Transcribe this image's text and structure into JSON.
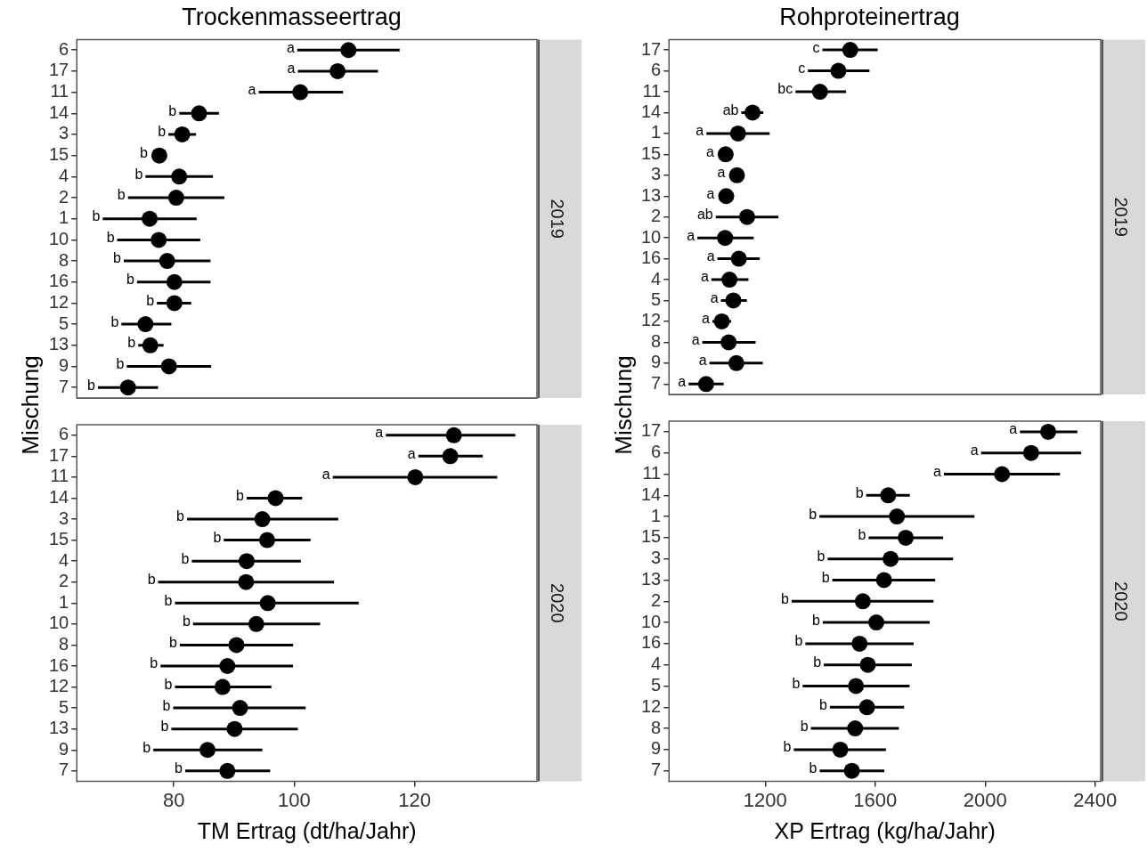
{
  "chart_data": [
    {
      "type": "scatter",
      "orientation": "horizontal",
      "title": "Trockenmasseertrag",
      "ylabel": "Mischung",
      "y2label": "2019",
      "categories": [
        "6",
        "17",
        "11",
        "14",
        "3",
        "15",
        "4",
        "2",
        "1",
        "10",
        "8",
        "16",
        "12",
        "5",
        "13",
        "9",
        "7"
      ],
      "color": "#000000",
      "marker": "circle",
      "grid": false,
      "legend": false,
      "tick_labels": "y",
      "xlim": [
        63.9,
        140.3
      ],
      "xticks": [
        80,
        100,
        120
      ],
      "values": [
        109.0,
        107.2,
        101.0,
        84.2,
        81.4,
        77.6,
        80.9,
        80.4,
        76.0,
        77.5,
        78.9,
        80.1,
        80.1,
        75.3,
        76.1,
        79.2,
        72.4
      ],
      "errors": [
        [
          100.5,
          117.5
        ],
        [
          100.6,
          113.9
        ],
        [
          94.1,
          108.1
        ],
        [
          80.9,
          87.5
        ],
        [
          79.1,
          83.7
        ],
        null,
        [
          75.3,
          86.5
        ],
        [
          72.4,
          88.4
        ],
        [
          68.2,
          83.8
        ],
        [
          70.6,
          84.4
        ],
        [
          71.7,
          86.1
        ],
        [
          73.9,
          86.1
        ],
        [
          77.2,
          82.9
        ],
        [
          71.3,
          79.6
        ],
        [
          74.1,
          78.3
        ],
        [
          72.2,
          86.2
        ],
        [
          67.4,
          77.4
        ]
      ],
      "annotations": [
        {
          "text": "a",
          "x": 100.5,
          "y": "6"
        },
        {
          "text": "a",
          "x": 100.6,
          "y": "17"
        },
        {
          "text": "a",
          "x": 94.1,
          "y": "11"
        },
        {
          "text": "b",
          "x": 80.9,
          "y": "14"
        },
        {
          "text": "b",
          "x": 79.1,
          "y": "3"
        },
        {
          "text": "b",
          "x": 77.6,
          "y": "15"
        },
        {
          "text": "b",
          "x": 75.3,
          "y": "4"
        },
        {
          "text": "b",
          "x": 72.4,
          "y": "2"
        },
        {
          "text": "b",
          "x": 68.2,
          "y": "1"
        },
        {
          "text": "b",
          "x": 70.6,
          "y": "10"
        },
        {
          "text": "b",
          "x": 71.7,
          "y": "8"
        },
        {
          "text": "b",
          "x": 73.9,
          "y": "16"
        },
        {
          "text": "b",
          "x": 77.2,
          "y": "12"
        },
        {
          "text": "b",
          "x": 71.3,
          "y": "5"
        },
        {
          "text": "b",
          "x": 74.1,
          "y": "13"
        },
        {
          "text": "b",
          "x": 72.2,
          "y": "9"
        },
        {
          "text": "b",
          "x": 67.4,
          "y": "7"
        }
      ]
    },
    {
      "type": "scatter",
      "orientation": "horizontal",
      "xlabel": "TM Ertrag (dt/ha/Jahr)",
      "y2label": "2020",
      "categories": [
        "6",
        "17",
        "11",
        "14",
        "3",
        "15",
        "4",
        "2",
        "1",
        "10",
        "8",
        "16",
        "12",
        "5",
        "13",
        "9",
        "7"
      ],
      "color": "#000000",
      "marker": "circle",
      "grid": false,
      "legend": false,
      "xlim": [
        63.9,
        140.3
      ],
      "xticks": [
        80,
        100,
        120
      ],
      "values": [
        126.5,
        125.9,
        120.1,
        96.9,
        94.7,
        95.5,
        92.1,
        92.0,
        95.6,
        93.7,
        90.4,
        88.9,
        88.1,
        91.0,
        90.1,
        85.6,
        88.9
      ],
      "errors": [
        [
          115.2,
          136.7
        ],
        [
          120.6,
          131.3
        ],
        [
          106.4,
          133.7
        ],
        [
          92.1,
          101.3
        ],
        [
          82.2,
          107.3
        ],
        [
          88.3,
          102.7
        ],
        [
          83.0,
          101.1
        ],
        [
          77.4,
          106.6
        ],
        [
          80.2,
          110.7
        ],
        [
          83.2,
          104.3
        ],
        [
          81.0,
          99.8
        ],
        [
          77.8,
          99.8
        ],
        [
          80.2,
          96.2
        ],
        [
          79.9,
          101.9
        ],
        [
          79.6,
          100.6
        ],
        [
          76.6,
          94.7
        ],
        [
          81.9,
          96.0
        ]
      ],
      "annotations": [
        {
          "text": "a",
          "x": 115.2,
          "y": "6"
        },
        {
          "text": "a",
          "x": 120.6,
          "y": "17"
        },
        {
          "text": "a",
          "x": 106.4,
          "y": "11"
        },
        {
          "text": "b",
          "x": 92.1,
          "y": "14"
        },
        {
          "text": "b",
          "x": 82.2,
          "y": "3"
        },
        {
          "text": "b",
          "x": 88.3,
          "y": "15"
        },
        {
          "text": "b",
          "x": 83.0,
          "y": "4"
        },
        {
          "text": "b",
          "x": 77.4,
          "y": "2"
        },
        {
          "text": "b",
          "x": 80.2,
          "y": "1"
        },
        {
          "text": "b",
          "x": 83.2,
          "y": "10"
        },
        {
          "text": "b",
          "x": 81.0,
          "y": "8"
        },
        {
          "text": "b",
          "x": 77.8,
          "y": "16"
        },
        {
          "text": "b",
          "x": 80.2,
          "y": "12"
        },
        {
          "text": "b",
          "x": 79.9,
          "y": "5"
        },
        {
          "text": "b",
          "x": 79.6,
          "y": "13"
        },
        {
          "text": "b",
          "x": 76.6,
          "y": "9"
        },
        {
          "text": "b",
          "x": 81.9,
          "y": "7"
        }
      ]
    },
    {
      "type": "scatter",
      "orientation": "horizontal",
      "title": "Rohproteinertrag",
      "ylabel": "Mischung",
      "y2label": "2019",
      "categories": [
        "17",
        "6",
        "11",
        "14",
        "1",
        "15",
        "3",
        "13",
        "2",
        "10",
        "16",
        "4",
        "5",
        "12",
        "8",
        "9",
        "7"
      ],
      "color": "#000000",
      "marker": "circle",
      "grid": false,
      "legend": false,
      "tick_labels": "y",
      "xlim": [
        850,
        2420
      ],
      "xticks": [
        1200,
        1600,
        2000,
        2400
      ],
      "values": [
        1509,
        1466,
        1399,
        1154,
        1101,
        1056,
        1097,
        1058,
        1134,
        1054,
        1104,
        1070,
        1084,
        1042,
        1067,
        1095,
        985
      ],
      "errors": [
        [
          1408,
          1609
        ],
        [
          1355,
          1579
        ],
        [
          1310,
          1494
        ],
        [
          1113,
          1193
        ],
        [
          986,
          1216
        ],
        null,
        null,
        null,
        [
          1020,
          1248
        ],
        [
          953,
          1158
        ],
        [
          1026,
          1180
        ],
        [
          1004,
          1139
        ],
        [
          1039,
          1133
        ],
        [
          1008,
          1076
        ],
        [
          971,
          1165
        ],
        [
          997,
          1191
        ],
        [
          921,
          1049
        ]
      ],
      "annotations": [
        {
          "text": "c",
          "x": 1408,
          "y": "17"
        },
        {
          "text": "c",
          "x": 1355,
          "y": "6"
        },
        {
          "text": "bc",
          "x": 1310,
          "y": "11"
        },
        {
          "text": "ab",
          "x": 1113,
          "y": "14"
        },
        {
          "text": "a",
          "x": 986,
          "y": "1"
        },
        {
          "text": "a",
          "x": 1056,
          "y": "15"
        },
        {
          "text": "a",
          "x": 1097,
          "y": "3"
        },
        {
          "text": "a",
          "x": 1058,
          "y": "13"
        },
        {
          "text": "ab",
          "x": 1020,
          "y": "2"
        },
        {
          "text": "a",
          "x": 953,
          "y": "10"
        },
        {
          "text": "a",
          "x": 1026,
          "y": "16"
        },
        {
          "text": "a",
          "x": 1004,
          "y": "4"
        },
        {
          "text": "a",
          "x": 1039,
          "y": "5"
        },
        {
          "text": "a",
          "x": 1008,
          "y": "12"
        },
        {
          "text": "a",
          "x": 971,
          "y": "8"
        },
        {
          "text": "a",
          "x": 997,
          "y": "9"
        },
        {
          "text": "a",
          "x": 921,
          "y": "7"
        }
      ]
    },
    {
      "type": "scatter",
      "orientation": "horizontal",
      "xlabel": "XP Ertrag (kg/ha/Jahr)",
      "y2label": "2020",
      "categories": [
        "17",
        "6",
        "11",
        "14",
        "1",
        "15",
        "3",
        "13",
        "2",
        "10",
        "16",
        "4",
        "5",
        "12",
        "8",
        "9",
        "7"
      ],
      "color": "#000000",
      "marker": "circle",
      "grid": false,
      "legend": false,
      "xlim": [
        850,
        2420
      ],
      "xticks": [
        1200,
        1600,
        2000,
        2400
      ],
      "values": [
        2229,
        2167,
        2061,
        1647,
        1679,
        1711,
        1656,
        1632,
        1555,
        1604,
        1543,
        1573,
        1530,
        1570,
        1527,
        1473,
        1515
      ],
      "errors": [
        [
          2126,
          2335
        ],
        [
          1985,
          2349
        ],
        [
          1850,
          2272
        ],
        [
          1567,
          1726
        ],
        [
          1397,
          1961
        ],
        [
          1576,
          1847
        ],
        [
          1427,
          1883
        ],
        [
          1444,
          1818
        ],
        [
          1296,
          1812
        ],
        [
          1409,
          1798
        ],
        [
          1346,
          1740
        ],
        [
          1413,
          1733
        ],
        [
          1336,
          1725
        ],
        [
          1435,
          1705
        ],
        [
          1366,
          1686
        ],
        [
          1304,
          1639
        ],
        [
          1398,
          1633
        ]
      ],
      "annotations": [
        {
          "text": "a",
          "x": 2126,
          "y": "17"
        },
        {
          "text": "a",
          "x": 1985,
          "y": "6"
        },
        {
          "text": "a",
          "x": 1850,
          "y": "11"
        },
        {
          "text": "b",
          "x": 1567,
          "y": "14"
        },
        {
          "text": "b",
          "x": 1397,
          "y": "1"
        },
        {
          "text": "b",
          "x": 1576,
          "y": "15"
        },
        {
          "text": "b",
          "x": 1427,
          "y": "3"
        },
        {
          "text": "b",
          "x": 1444,
          "y": "13"
        },
        {
          "text": "b",
          "x": 1296,
          "y": "2"
        },
        {
          "text": "b",
          "x": 1409,
          "y": "10"
        },
        {
          "text": "b",
          "x": 1346,
          "y": "16"
        },
        {
          "text": "b",
          "x": 1413,
          "y": "4"
        },
        {
          "text": "b",
          "x": 1336,
          "y": "5"
        },
        {
          "text": "b",
          "x": 1435,
          "y": "12"
        },
        {
          "text": "b",
          "x": 1366,
          "y": "8"
        },
        {
          "text": "b",
          "x": 1304,
          "y": "9"
        },
        {
          "text": "b",
          "x": 1398,
          "y": "7"
        }
      ]
    }
  ]
}
